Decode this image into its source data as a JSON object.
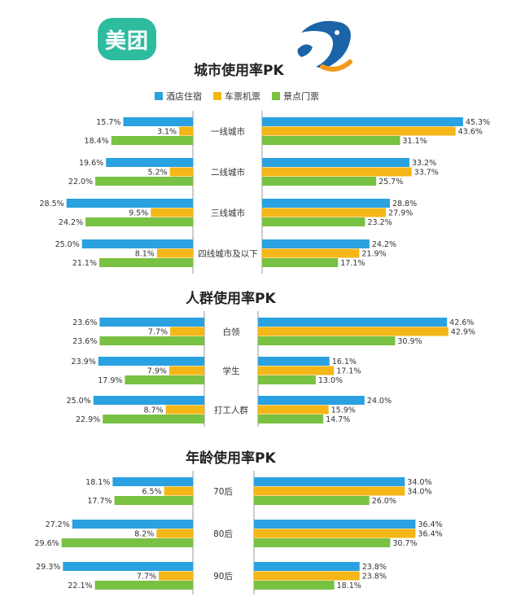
{
  "brands": {
    "left": "美团"
  },
  "colors": {
    "hotel": "#2aa1e0",
    "ticket": "#f5b617",
    "scenic": "#79c142"
  },
  "legend": [
    {
      "key": "hotel",
      "label": "酒店住宿"
    },
    {
      "key": "ticket",
      "label": "车票机票"
    },
    {
      "key": "scenic",
      "label": "景点门票"
    }
  ],
  "chart_data": [
    {
      "type": "bar",
      "title": "城市使用率PK",
      "categories": [
        "一线城市",
        "二线城市",
        "三线城市",
        "四线城市及以下"
      ],
      "series_left": [
        {
          "name": "酒店住宿",
          "values": [
            15.7,
            19.6,
            28.5,
            25.0
          ]
        },
        {
          "name": "车票机票",
          "values": [
            3.1,
            5.2,
            9.5,
            8.1
          ]
        },
        {
          "name": "景点门票",
          "values": [
            18.4,
            22.0,
            24.2,
            21.1
          ]
        }
      ],
      "series_right": [
        {
          "name": "酒店住宿",
          "values": [
            45.3,
            33.2,
            28.8,
            24.2
          ]
        },
        {
          "name": "车票机票",
          "values": [
            43.6,
            33.7,
            27.9,
            21.9
          ]
        },
        {
          "name": "景点门票",
          "values": [
            31.1,
            25.7,
            23.2,
            17.1
          ]
        }
      ]
    },
    {
      "type": "bar",
      "title": "人群使用率PK",
      "categories": [
        "白领",
        "学生",
        "打工人群"
      ],
      "series_left": [
        {
          "name": "酒店住宿",
          "values": [
            23.6,
            23.9,
            25.0
          ]
        },
        {
          "name": "车票机票",
          "values": [
            7.7,
            7.9,
            8.7
          ]
        },
        {
          "name": "景点门票",
          "values": [
            23.6,
            17.9,
            22.9
          ]
        }
      ],
      "series_right": [
        {
          "name": "酒店住宿",
          "values": [
            42.6,
            16.1,
            24.0
          ]
        },
        {
          "name": "车票机票",
          "values": [
            42.9,
            17.1,
            15.9
          ]
        },
        {
          "name": "景点门票",
          "values": [
            30.9,
            13.0,
            14.7
          ]
        }
      ]
    },
    {
      "type": "bar",
      "title": "年龄使用率PK",
      "categories": [
        "70后",
        "80后",
        "90后"
      ],
      "series_left": [
        {
          "name": "酒店住宿",
          "values": [
            18.1,
            27.2,
            29.3
          ]
        },
        {
          "name": "车票机票",
          "values": [
            6.5,
            8.2,
            7.7
          ]
        },
        {
          "name": "景点门票",
          "values": [
            17.7,
            29.6,
            22.1
          ]
        }
      ],
      "series_right": [
        {
          "name": "酒店住宿",
          "values": [
            34.0,
            36.4,
            23.8
          ]
        },
        {
          "name": "车票机票",
          "values": [
            34.0,
            36.4,
            23.8
          ]
        },
        {
          "name": "景点门票",
          "values": [
            26.0,
            30.7,
            18.1
          ]
        }
      ]
    }
  ]
}
